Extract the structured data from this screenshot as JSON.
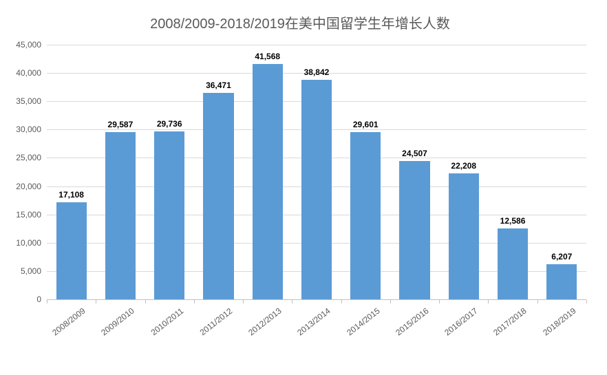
{
  "chart": {
    "type": "bar",
    "title": "2008/2009-2018/2019在美中国留学生年增长人数",
    "title_fontsize": 20,
    "title_color": "#595959",
    "categories": [
      "2008/2009",
      "2009/2010",
      "2010/2011",
      "2011/2012",
      "2012/2013",
      "2013/2014",
      "2014/2015",
      "2015/2016",
      "2016/2017",
      "2017/2018",
      "2018/2019"
    ],
    "values": [
      17108,
      29587,
      29736,
      36471,
      41568,
      38842,
      29601,
      24507,
      22208,
      12586,
      6207
    ],
    "value_labels": [
      "17,108",
      "29,587",
      "29,736",
      "36,471",
      "41,568",
      "38,842",
      "29,601",
      "24,507",
      "22,208",
      "12,586",
      "6,207"
    ],
    "bar_color": "#5b9bd5",
    "bar_width": 0.62,
    "ylim": [
      0,
      45000
    ],
    "ytick_step": 5000,
    "y_ticks": [
      0,
      5000,
      10000,
      15000,
      20000,
      25000,
      30000,
      35000,
      40000,
      45000
    ],
    "y_tick_labels": [
      "0",
      "5,000",
      "10,000",
      "15,000",
      "20,000",
      "25,000",
      "30,000",
      "35,000",
      "40,000",
      "45,000"
    ],
    "grid_color": "#d9d9d9",
    "axis_label_color": "#595959",
    "axis_label_fontsize": 12,
    "value_label_fontsize": 12,
    "value_label_weight": "bold",
    "background_color": "#ffffff",
    "x_label_rotation_deg": -38
  }
}
